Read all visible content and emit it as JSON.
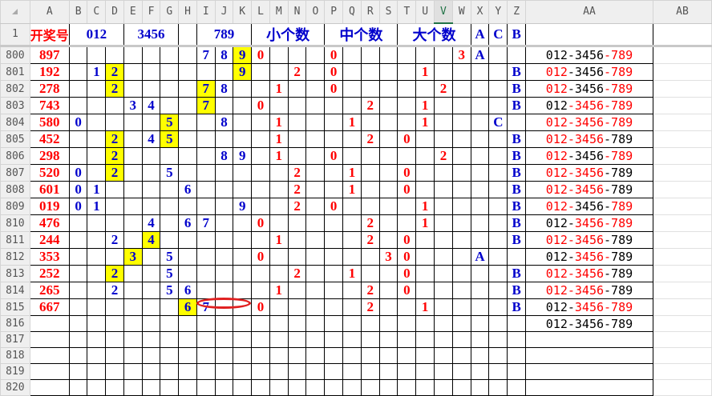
{
  "columns": [
    "A",
    "B",
    "C",
    "D",
    "E",
    "F",
    "G",
    "H",
    "I",
    "J",
    "K",
    "L",
    "M",
    "N",
    "O",
    "P",
    "Q",
    "R",
    "S",
    "T",
    "U",
    "V",
    "W",
    "X",
    "Y",
    "Z",
    "AA",
    "AB"
  ],
  "selected_column": "V",
  "header_row": {
    "row_number": "1",
    "A": "开奖号",
    "groups": [
      {
        "label": "012",
        "start": "B",
        "span": 3
      },
      {
        "label": "3456",
        "start": "E",
        "span": 3
      },
      {
        "label": "",
        "start": "H",
        "span": 1
      },
      {
        "label": "789",
        "start": "I",
        "span": 3
      },
      {
        "label": "小个数",
        "start": "L",
        "span": 4
      },
      {
        "label": "中个数",
        "start": "P",
        "span": 4
      },
      {
        "label": "大个数",
        "start": "T",
        "span": 4
      },
      {
        "label": "A",
        "start": "X",
        "span": 1
      },
      {
        "label": "C",
        "start": "Y",
        "span": 1
      },
      {
        "label": "B",
        "start": "Z",
        "span": 1
      }
    ]
  },
  "colors": {
    "digit_blue": "#0000cc",
    "count_red": "#ff0000",
    "highlight": "#ffff00",
    "annotation_ellipse": "#e02020"
  },
  "rows": [
    {
      "n": "800",
      "a": "897",
      "cells": {
        "I": "7",
        "J": "8",
        "K": "9",
        "L": "0",
        "P": "0",
        "W": "3",
        "X": "A"
      },
      "hl": [
        "K"
      ],
      "aa": [
        [
          "012-3456",
          0
        ],
        [
          "-789",
          1
        ]
      ]
    },
    {
      "n": "801",
      "a": "192",
      "cells": {
        "C": "1",
        "D": "2",
        "K": "9",
        "N": "2",
        "P": "0",
        "U": "1",
        "Z": "B"
      },
      "hl": [
        "D",
        "K"
      ],
      "aa": [
        [
          "012",
          1
        ],
        [
          "-3456",
          0
        ],
        [
          "-789",
          1
        ]
      ]
    },
    {
      "n": "802",
      "a": "278",
      "cells": {
        "D": "2",
        "I": "7",
        "J": "8",
        "M": "1",
        "P": "0",
        "V": "2",
        "Z": "B"
      },
      "hl": [
        "D",
        "I"
      ],
      "aa": [
        [
          "012",
          1
        ],
        [
          "-3456",
          0
        ],
        [
          "-789",
          1
        ]
      ]
    },
    {
      "n": "803",
      "a": "743",
      "cells": {
        "E": "3",
        "F": "4",
        "I": "7",
        "L": "0",
        "R": "2",
        "U": "1",
        "Z": "B"
      },
      "hl": [
        "I"
      ],
      "aa": [
        [
          "012",
          0
        ],
        [
          "-3456-789",
          1
        ]
      ]
    },
    {
      "n": "804",
      "a": "580",
      "cells": {
        "B": "0",
        "G": "5",
        "J": "8",
        "M": "1",
        "Q": "1",
        "U": "1",
        "Y": "C"
      },
      "hl": [
        "G"
      ],
      "aa": [
        [
          "012-3456-789",
          1
        ]
      ]
    },
    {
      "n": "805",
      "a": "452",
      "cells": {
        "D": "2",
        "F": "4",
        "G": "5",
        "M": "1",
        "R": "2",
        "T": "0",
        "Z": "B"
      },
      "hl": [
        "D",
        "G"
      ],
      "aa": [
        [
          "012-3456",
          1
        ],
        [
          "-789",
          0
        ]
      ]
    },
    {
      "n": "806",
      "a": "298",
      "cells": {
        "D": "2",
        "J": "8",
        "K": "9",
        "M": "1",
        "P": "0",
        "V": "2",
        "Z": "B"
      },
      "hl": [
        "D"
      ],
      "aa": [
        [
          "012",
          1
        ],
        [
          "-3456",
          0
        ],
        [
          "-789",
          1
        ]
      ]
    },
    {
      "n": "807",
      "a": "520",
      "cells": {
        "B": "0",
        "D": "2",
        "G": "5",
        "N": "2",
        "Q": "1",
        "T": "0",
        "Z": "B"
      },
      "hl": [
        "D"
      ],
      "aa": [
        [
          "012-3456",
          1
        ],
        [
          "-789",
          0
        ]
      ]
    },
    {
      "n": "808",
      "a": "601",
      "cells": {
        "B": "0",
        "C": "1",
        "H": "6",
        "N": "2",
        "Q": "1",
        "T": "0",
        "Z": "B"
      },
      "hl": [],
      "aa": [
        [
          "012-3456",
          1
        ],
        [
          "-789",
          0
        ]
      ]
    },
    {
      "n": "809",
      "a": "019",
      "cells": {
        "B": "0",
        "C": "1",
        "K": "9",
        "N": "2",
        "P": "0",
        "U": "1",
        "Z": "B"
      },
      "hl": [],
      "aa": [
        [
          "012-",
          1
        ],
        [
          "3456-",
          0
        ],
        [
          "789",
          1
        ]
      ]
    },
    {
      "n": "810",
      "a": "476",
      "cells": {
        "F": "4",
        "H": "6",
        "I": "7",
        "L": "0",
        "R": "2",
        "U": "1",
        "Z": "B"
      },
      "hl": [],
      "aa": [
        [
          "012-",
          0
        ],
        [
          "3456-789",
          1
        ]
      ]
    },
    {
      "n": "811",
      "a": "244",
      "cells": {
        "D": "2",
        "F": "4",
        "M": "1",
        "R": "2",
        "T": "0",
        "Z": "B"
      },
      "hl": [
        "F"
      ],
      "aa": [
        [
          "012-3456",
          1
        ],
        [
          "-789",
          0
        ]
      ]
    },
    {
      "n": "812",
      "a": "353",
      "cells": {
        "E": "3",
        "G": "5",
        "L": "0",
        "S": "3",
        "T": "0",
        "X": "A"
      },
      "hl": [
        "E"
      ],
      "aa": [
        [
          "012-",
          0
        ],
        [
          "3456-",
          1
        ],
        [
          "789",
          0
        ]
      ]
    },
    {
      "n": "813",
      "a": "252",
      "cells": {
        "D": "2",
        "G": "5",
        "N": "2",
        "Q": "1",
        "T": "0",
        "Z": "B"
      },
      "hl": [
        "D"
      ],
      "aa": [
        [
          "012-3456",
          1
        ],
        [
          "-789",
          0
        ]
      ]
    },
    {
      "n": "814",
      "a": "265",
      "cells": {
        "D": "2",
        "G": "5",
        "H": "6",
        "M": "1",
        "R": "2",
        "T": "0",
        "Z": "B"
      },
      "hl": [],
      "aa": [
        [
          "012-3456",
          1
        ],
        [
          "-789",
          0
        ]
      ]
    },
    {
      "n": "815",
      "a": "667",
      "cells": {
        "H": "6",
        "I": "7",
        "L": "0",
        "R": "2",
        "U": "1",
        "Z": "B"
      },
      "hl": [
        "H"
      ],
      "aa": [
        [
          "012-",
          0
        ],
        [
          "3456-789",
          1
        ]
      ]
    },
    {
      "n": "816",
      "a": "",
      "cells": {},
      "hl": [],
      "aa": [
        [
          "012-3456-789",
          0
        ]
      ]
    },
    {
      "n": "817",
      "a": "",
      "cells": {},
      "hl": [],
      "aa": []
    },
    {
      "n": "818",
      "a": "",
      "cells": {},
      "hl": [],
      "aa": []
    },
    {
      "n": "819",
      "a": "",
      "cells": {},
      "hl": [],
      "aa": []
    },
    {
      "n": "820",
      "a": "",
      "cells": {},
      "hl": [],
      "aa": []
    }
  ]
}
